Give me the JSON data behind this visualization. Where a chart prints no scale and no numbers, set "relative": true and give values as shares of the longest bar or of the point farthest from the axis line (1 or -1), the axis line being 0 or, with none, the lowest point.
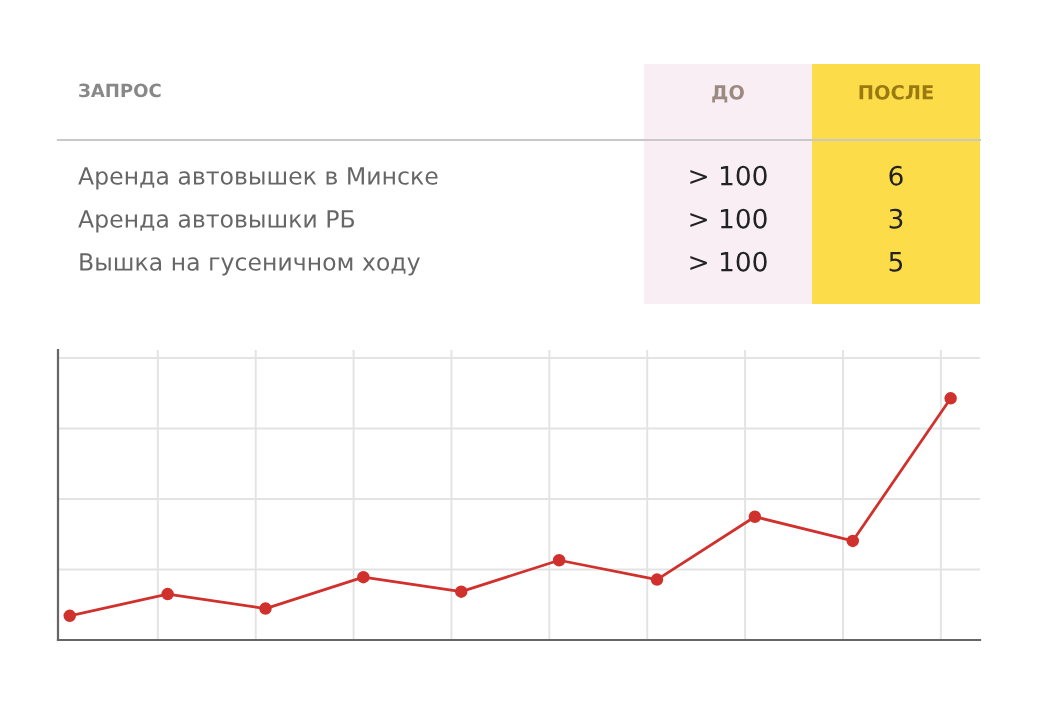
{
  "chart_data": [
    {
      "type": "other",
      "ylabel": "ЗАПРОС",
      "categories": [
        "ДО",
        "ПОСЛЕ"
      ],
      "colors": [
        "#f8eef4",
        "#fddc4a"
      ],
      "y_categories": [
        "Аренда автовышек в Минске",
        "Аренда автовышки РБ",
        "Вышка на гусеничном ходу"
      ],
      "cell_labels": [
        [
          "> 100",
          "6"
        ],
        [
          "> 100",
          "3"
        ],
        [
          "> 100",
          "5"
        ]
      ]
    },
    {
      "type": "line",
      "relative": true,
      "categories": [
        null,
        null,
        null,
        null,
        null,
        null,
        null,
        null,
        null,
        null
      ],
      "series": [
        {
          "color": "#d0312d",
          "values": [
            0.1,
            0.19,
            0.13,
            0.26,
            0.2,
            0.33,
            0.25,
            0.51,
            0.41,
            1.0
          ]
        }
      ],
      "marker": "circle",
      "line_style": "solid",
      "grid": true
    }
  ]
}
